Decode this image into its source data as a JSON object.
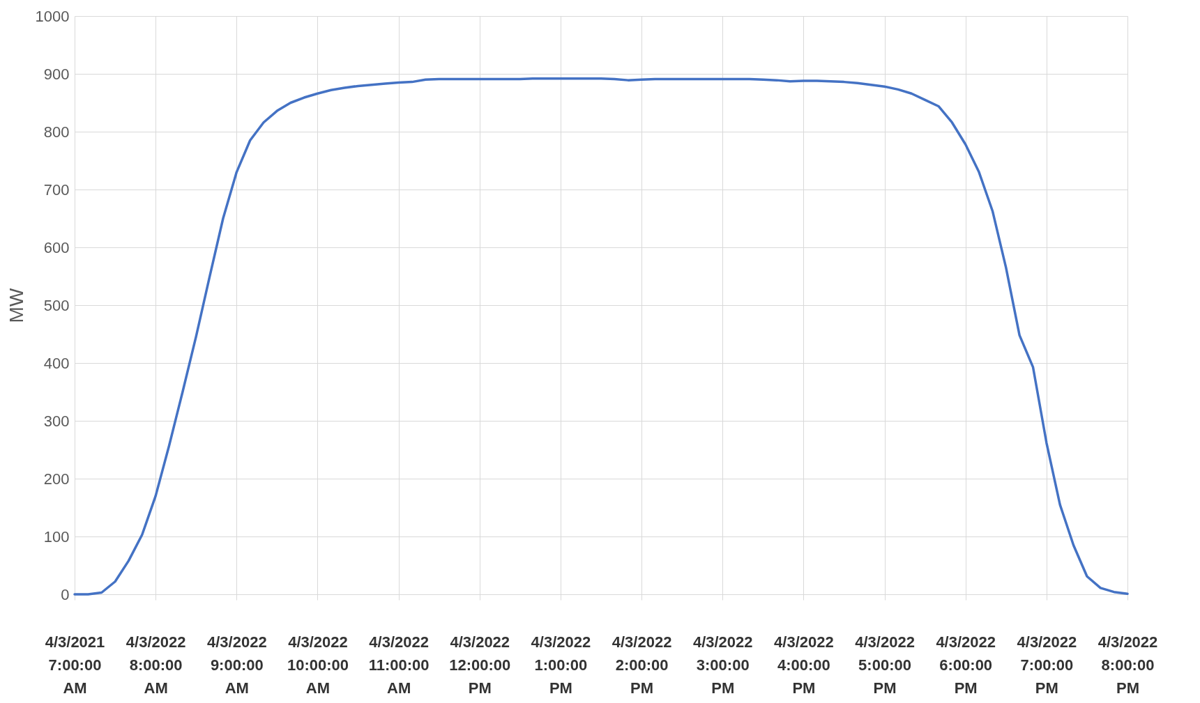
{
  "chart_data": {
    "type": "line",
    "ylabel": "MW",
    "categories": [
      "4/3/2021 7:00:00 AM",
      null,
      null,
      null,
      null,
      null,
      "4/3/2022 8:00:00 AM",
      null,
      null,
      null,
      null,
      null,
      "4/3/2022 9:00:00 AM",
      null,
      null,
      null,
      null,
      null,
      "4/3/2022 10:00:00 AM",
      null,
      null,
      null,
      null,
      null,
      "4/3/2022 11:00:00 AM",
      null,
      null,
      null,
      null,
      null,
      "4/3/2022 12:00:00 PM",
      null,
      null,
      null,
      null,
      null,
      "4/3/2022 1:00:00 PM",
      null,
      null,
      null,
      null,
      null,
      "4/3/2022 2:00:00 PM",
      null,
      null,
      null,
      null,
      null,
      "4/3/2022 3:00:00 PM",
      null,
      null,
      null,
      null,
      null,
      "4/3/2022 4:00:00 PM",
      null,
      null,
      null,
      null,
      null,
      "4/3/2022 5:00:00 PM",
      null,
      null,
      null,
      null,
      null,
      "4/3/2022 6:00:00 PM",
      null,
      null,
      null,
      null,
      null,
      "4/3/2022 7:00:00 PM",
      null,
      null,
      null,
      null,
      null,
      "4/3/2022 8:00:00 PM"
    ],
    "series": [
      {
        "color": "#4472c4",
        "values": [
          0,
          0,
          3,
          22,
          58,
          103,
          170,
          257,
          350,
          446,
          549,
          650,
          730,
          785,
          816,
          836,
          850,
          859,
          866,
          872,
          876,
          879,
          881,
          883,
          885,
          886,
          890,
          891,
          891,
          891,
          891,
          891,
          891,
          891,
          892,
          892,
          892,
          892,
          892,
          892,
          891,
          889,
          890,
          891,
          891,
          891,
          891,
          891,
          891,
          891,
          891,
          890,
          889,
          887,
          888,
          888,
          887,
          886,
          884,
          881,
          878,
          873,
          866,
          855,
          844,
          816,
          778,
          730,
          663,
          565,
          448,
          393,
          262,
          155,
          85,
          31,
          11,
          4,
          1
        ]
      }
    ],
    "ylim": [
      0,
      1000
    ],
    "yticks": [
      0,
      100,
      200,
      300,
      400,
      500,
      600,
      700,
      800,
      900,
      1000
    ],
    "grid": true,
    "marker": "none",
    "line_style": "solid"
  }
}
